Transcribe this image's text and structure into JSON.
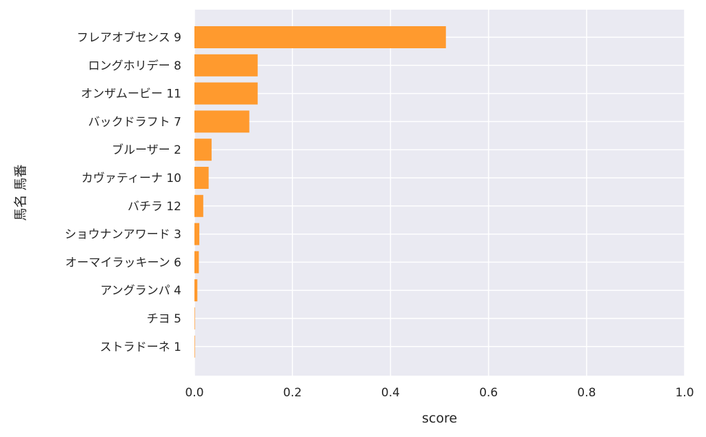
{
  "chart_data": {
    "type": "bar",
    "orientation": "horizontal",
    "xlabel": "score",
    "ylabel": "馬名 馬番",
    "xlim": [
      0.0,
      1.0
    ],
    "x_ticks": [
      "0.0",
      "0.2",
      "0.4",
      "0.6",
      "0.8",
      "1.0"
    ],
    "grid": true,
    "categories": [
      "フレアオブセンス 9",
      "ロングホリデー 8",
      "オンザムービー 11",
      "バックドラフト 7",
      "ブルーザー 2",
      "カヴァティーナ 10",
      "バチラ 12",
      "ショウナンアワード 3",
      "オーマイラッキーン 6",
      "アングランパ 4",
      "チヨ 5",
      "ストラドーネ 1"
    ],
    "values": [
      0.513,
      0.129,
      0.129,
      0.112,
      0.035,
      0.029,
      0.018,
      0.01,
      0.009,
      0.006,
      0.001,
      0.001
    ]
  },
  "colors": {
    "bar": "#ff9a2e",
    "plot_background": "#eaeaf2",
    "grid": "#ffffff"
  }
}
